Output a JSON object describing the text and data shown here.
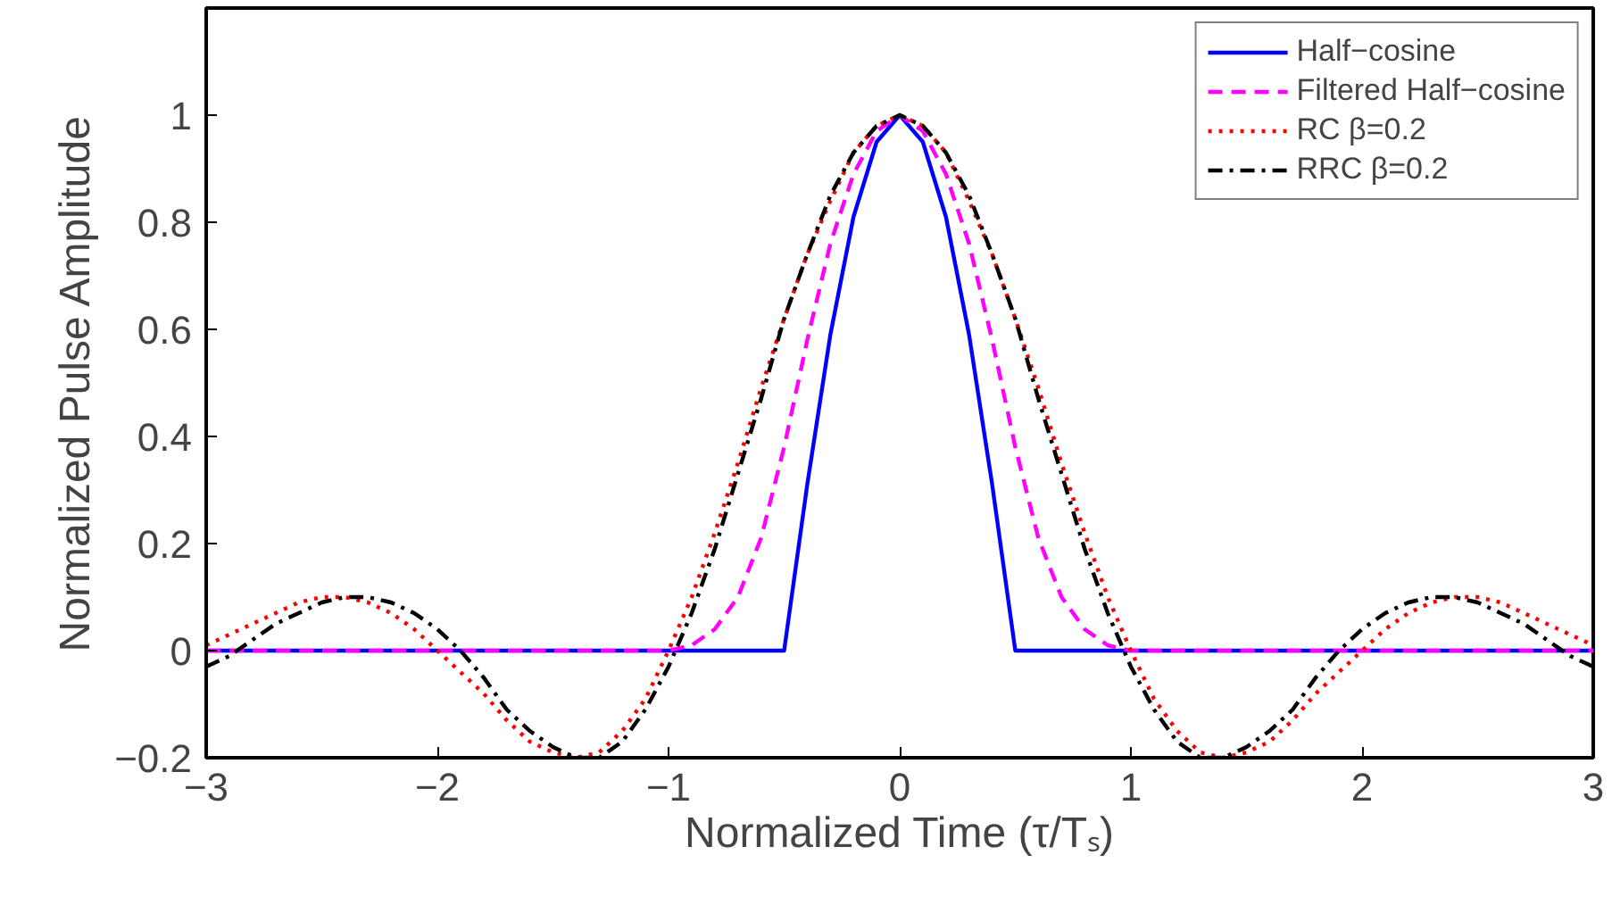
{
  "chart_data": {
    "type": "line",
    "xlabel": "Normalized Time (τ/Tₛ)",
    "ylabel": "Normalized Pulse Amplitude",
    "x": [
      -3,
      -2.9,
      -2.8,
      -2.7,
      -2.6,
      -2.5,
      -2.4,
      -2.3,
      -2.2,
      -2.1,
      -2,
      -1.9,
      -1.8,
      -1.7,
      -1.6,
      -1.5,
      -1.4,
      -1.3,
      -1.2,
      -1.1,
      -1,
      -0.9,
      -0.8,
      -0.7,
      -0.6,
      -0.5,
      -0.4,
      -0.3,
      -0.2,
      -0.1,
      0,
      0.1,
      0.2,
      0.3,
      0.4,
      0.5,
      0.6,
      0.7,
      0.8,
      0.9,
      1,
      1.1,
      1.2,
      1.3,
      1.4,
      1.5,
      1.6,
      1.7,
      1.8,
      1.9,
      2,
      2.1,
      2.2,
      2.3,
      2.4,
      2.5,
      2.6,
      2.7,
      2.8,
      2.9,
      3
    ],
    "series": [
      {
        "name": "Half−cosine",
        "color": "#0000ff",
        "line_style": "solid",
        "values": [
          0,
          0,
          0,
          0,
          0,
          0,
          0,
          0,
          0,
          0,
          0,
          0,
          0,
          0,
          0,
          0,
          0,
          0,
          0,
          0,
          0,
          0,
          0,
          0,
          0,
          0,
          0.31,
          0.59,
          0.81,
          0.95,
          1,
          0.95,
          0.81,
          0.59,
          0.31,
          0,
          0,
          0,
          0,
          0,
          0,
          0,
          0,
          0,
          0,
          0,
          0,
          0,
          0,
          0,
          0,
          0,
          0,
          0,
          0,
          0,
          0,
          0,
          0,
          0,
          0
        ]
      },
      {
        "name": "Filtered Half−cosine",
        "color": "#ff00ff",
        "line_style": "dashed",
        "values": [
          0,
          0,
          0,
          0,
          0,
          0,
          0,
          0,
          0,
          0,
          0,
          0,
          0,
          0,
          0,
          0,
          0,
          0,
          0,
          0,
          0,
          0.01,
          0.04,
          0.1,
          0.21,
          0.38,
          0.58,
          0.76,
          0.89,
          0.97,
          1,
          0.97,
          0.89,
          0.76,
          0.58,
          0.38,
          0.21,
          0.1,
          0.04,
          0.01,
          0,
          0,
          0,
          0,
          0,
          0,
          0,
          0,
          0,
          0,
          0,
          0,
          0,
          0,
          0,
          0,
          0,
          0,
          0,
          0,
          0
        ]
      },
      {
        "name": "RC β=0.2",
        "color": "#ff0000",
        "line_style": "dotted",
        "values": [
          0.01,
          0.03,
          0.05,
          0.07,
          0.09,
          0.1,
          0.1,
          0.09,
          0.07,
          0.04,
          0,
          -0.04,
          -0.08,
          -0.13,
          -0.17,
          -0.19,
          -0.2,
          -0.19,
          -0.15,
          -0.09,
          0,
          0.1,
          0.22,
          0.35,
          0.49,
          0.62,
          0.74,
          0.84,
          0.93,
          0.98,
          1,
          0.98,
          0.93,
          0.84,
          0.74,
          0.62,
          0.49,
          0.35,
          0.22,
          0.1,
          0,
          -0.09,
          -0.15,
          -0.19,
          -0.2,
          -0.19,
          -0.17,
          -0.13,
          -0.08,
          -0.04,
          0,
          0.04,
          0.07,
          0.09,
          0.1,
          0.1,
          0.09,
          0.07,
          0.05,
          0.03,
          0.01
        ]
      },
      {
        "name": "RRC β=0.2",
        "color": "#000000",
        "line_style": "dashdot",
        "values": [
          -0.03,
          -0.01,
          0.02,
          0.05,
          0.07,
          0.09,
          0.1,
          0.1,
          0.09,
          0.07,
          0.04,
          0,
          -0.05,
          -0.11,
          -0.15,
          -0.18,
          -0.2,
          -0.2,
          -0.17,
          -0.11,
          -0.03,
          0.07,
          0.19,
          0.33,
          0.47,
          0.62,
          0.74,
          0.85,
          0.93,
          0.98,
          1,
          0.98,
          0.93,
          0.85,
          0.74,
          0.62,
          0.47,
          0.33,
          0.19,
          0.07,
          -0.03,
          -0.11,
          -0.17,
          -0.2,
          -0.2,
          -0.18,
          -0.15,
          -0.11,
          -0.05,
          0,
          0.04,
          0.07,
          0.09,
          0.1,
          0.1,
          0.09,
          0.07,
          0.05,
          0.02,
          -0.01,
          -0.03
        ]
      }
    ],
    "xlim": [
      -3,
      3
    ],
    "xticks": [
      -3,
      -2,
      -1,
      0,
      1,
      2,
      3
    ],
    "ylim": [
      -0.2,
      1.2
    ],
    "yticks": [
      {
        "value": -0.2,
        "label": "−0.2"
      },
      0,
      0.2,
      0.4,
      0.6,
      0.8,
      1
    ],
    "grid": false,
    "legend": "top right",
    "marker": "none"
  }
}
